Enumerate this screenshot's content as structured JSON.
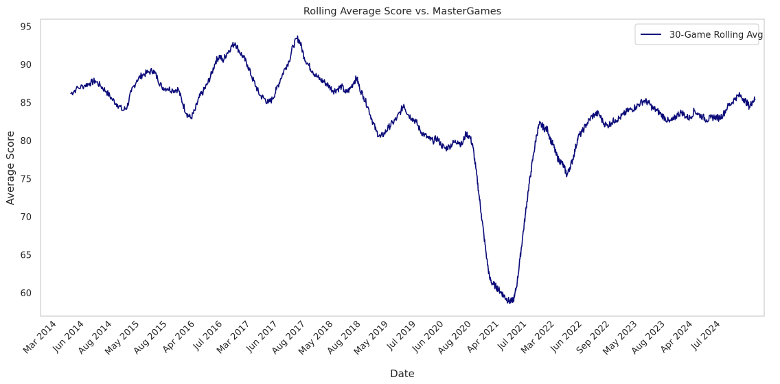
{
  "chart_data": {
    "type": "line",
    "title": "Rolling Average Score vs. MasterGames",
    "xlabel": "Date",
    "ylabel": "Average Score",
    "ylim": [
      57,
      96
    ],
    "yticks": [
      60,
      65,
      70,
      75,
      80,
      85,
      90,
      95
    ],
    "grid": false,
    "legend_position": "top-right",
    "line_color": "#0a0a78",
    "xtick_labels": [
      "Mar 2014",
      "Jun 2014",
      "Aug 2014",
      "May 2015",
      "Aug 2015",
      "Apr 2016",
      "Jul 2016",
      "Mar 2017",
      "Jun 2017",
      "Aug 2017",
      "May 2018",
      "Aug 2018",
      "May 2019",
      "Jul 2019",
      "Jun 2020",
      "Aug 2020",
      "Apr 2021",
      "Jul 2021",
      "Mar 2022",
      "Jun 2022",
      "Sep 2022",
      "May 2023",
      "Aug 2023",
      "Apr 2024",
      "Jul 2024"
    ],
    "series": [
      {
        "name": "30-Game Rolling Avg",
        "points": [
          [
            0.5,
            86.2
          ],
          [
            0.7,
            86.8
          ],
          [
            1.0,
            87.3
          ],
          [
            1.2,
            87.6
          ],
          [
            1.4,
            87.9
          ],
          [
            1.6,
            87.2
          ],
          [
            1.8,
            86.5
          ],
          [
            2.0,
            85.5
          ],
          [
            2.2,
            84.8
          ],
          [
            2.4,
            84.0
          ],
          [
            2.55,
            84.5
          ],
          [
            2.7,
            86.5
          ],
          [
            2.9,
            88.0
          ],
          [
            3.1,
            88.7
          ],
          [
            3.3,
            89.0
          ],
          [
            3.5,
            89.3
          ],
          [
            3.65,
            88.2
          ],
          [
            3.8,
            87.1
          ],
          [
            4.0,
            86.9
          ],
          [
            4.2,
            86.7
          ],
          [
            4.4,
            86.8
          ],
          [
            4.55,
            85.0
          ],
          [
            4.7,
            83.6
          ],
          [
            4.85,
            83.0
          ],
          [
            5.0,
            84.0
          ],
          [
            5.15,
            85.7
          ],
          [
            5.3,
            86.5
          ],
          [
            5.45,
            87.5
          ],
          [
            5.6,
            88.8
          ],
          [
            5.75,
            90.5
          ],
          [
            5.9,
            91.2
          ],
          [
            6.0,
            90.5
          ],
          [
            6.15,
            91.5
          ],
          [
            6.3,
            92.3
          ],
          [
            6.45,
            92.9
          ],
          [
            6.6,
            91.8
          ],
          [
            6.75,
            91.0
          ],
          [
            6.9,
            90.0
          ],
          [
            7.05,
            88.5
          ],
          [
            7.2,
            87.2
          ],
          [
            7.35,
            86.0
          ],
          [
            7.5,
            85.6
          ],
          [
            7.65,
            85.0
          ],
          [
            7.8,
            85.5
          ],
          [
            7.95,
            86.8
          ],
          [
            8.1,
            88.2
          ],
          [
            8.25,
            89.5
          ],
          [
            8.4,
            90.5
          ],
          [
            8.55,
            92.5
          ],
          [
            8.7,
            93.5
          ],
          [
            8.8,
            93.0
          ],
          [
            8.95,
            91.0
          ],
          [
            9.1,
            90.0
          ],
          [
            9.25,
            89.2
          ],
          [
            9.4,
            88.5
          ],
          [
            9.55,
            88.0
          ],
          [
            9.7,
            87.7
          ],
          [
            9.85,
            87.2
          ],
          [
            10.0,
            86.6
          ],
          [
            10.15,
            86.8
          ],
          [
            10.3,
            87.2
          ],
          [
            10.45,
            86.3
          ],
          [
            10.6,
            86.8
          ],
          [
            10.75,
            87.8
          ],
          [
            10.85,
            88.3
          ],
          [
            10.95,
            87.0
          ],
          [
            11.1,
            85.8
          ],
          [
            11.25,
            84.5
          ],
          [
            11.4,
            82.8
          ],
          [
            11.55,
            81.3
          ],
          [
            11.7,
            80.5
          ],
          [
            11.85,
            81.0
          ],
          [
            12.0,
            81.8
          ],
          [
            12.15,
            82.4
          ],
          [
            12.3,
            83.0
          ],
          [
            12.45,
            84.0
          ],
          [
            12.55,
            84.8
          ],
          [
            12.7,
            83.5
          ],
          [
            12.85,
            83.0
          ],
          [
            13.0,
            82.5
          ],
          [
            13.15,
            81.3
          ],
          [
            13.3,
            80.8
          ],
          [
            13.45,
            80.3
          ],
          [
            13.6,
            80.0
          ],
          [
            13.75,
            80.4
          ],
          [
            13.9,
            79.5
          ],
          [
            14.05,
            79.0
          ],
          [
            14.2,
            79.3
          ],
          [
            14.35,
            79.8
          ],
          [
            14.5,
            80.0
          ],
          [
            14.65,
            79.5
          ],
          [
            14.8,
            81.0
          ],
          [
            14.95,
            80.5
          ],
          [
            15.05,
            79.2
          ],
          [
            15.15,
            76.5
          ],
          [
            15.25,
            73.5
          ],
          [
            15.35,
            70.5
          ],
          [
            15.45,
            67.5
          ],
          [
            15.55,
            64.5
          ],
          [
            15.65,
            62.0
          ],
          [
            15.75,
            61.3
          ],
          [
            15.85,
            61.0
          ],
          [
            15.95,
            60.6
          ],
          [
            16.05,
            60.2
          ],
          [
            16.15,
            59.8
          ],
          [
            16.25,
            59.3
          ],
          [
            16.35,
            59.0
          ],
          [
            16.45,
            58.9
          ],
          [
            16.55,
            59.5
          ],
          [
            16.65,
            61.5
          ],
          [
            16.75,
            64.5
          ],
          [
            16.85,
            67.5
          ],
          [
            16.95,
            70.5
          ],
          [
            17.05,
            73.5
          ],
          [
            17.15,
            76.0
          ],
          [
            17.25,
            78.5
          ],
          [
            17.35,
            80.8
          ],
          [
            17.45,
            82.2
          ],
          [
            17.55,
            82.0
          ],
          [
            17.65,
            81.6
          ],
          [
            17.75,
            81.5
          ],
          [
            17.85,
            80.2
          ],
          [
            17.95,
            79.5
          ],
          [
            18.05,
            78.3
          ],
          [
            18.15,
            77.5
          ],
          [
            18.25,
            77.2
          ],
          [
            18.35,
            76.5
          ],
          [
            18.45,
            75.5
          ],
          [
            18.55,
            76.5
          ],
          [
            18.65,
            77.5
          ],
          [
            18.75,
            79.0
          ],
          [
            18.85,
            80.5
          ],
          [
            19.0,
            81.2
          ],
          [
            19.15,
            82.2
          ],
          [
            19.3,
            83.0
          ],
          [
            19.45,
            83.5
          ],
          [
            19.6,
            83.6
          ],
          [
            19.75,
            82.5
          ],
          [
            19.9,
            82.0
          ],
          [
            20.05,
            82.4
          ],
          [
            20.2,
            82.8
          ],
          [
            20.35,
            83.0
          ],
          [
            20.5,
            83.5
          ],
          [
            20.65,
            84.0
          ],
          [
            20.8,
            84.2
          ],
          [
            20.95,
            84.5
          ],
          [
            21.1,
            85.0
          ],
          [
            21.25,
            85.3
          ],
          [
            21.4,
            85.0
          ],
          [
            21.55,
            84.3
          ],
          [
            21.7,
            84.0
          ],
          [
            21.85,
            83.5
          ],
          [
            22.0,
            83.0
          ],
          [
            22.15,
            82.5
          ],
          [
            22.3,
            82.8
          ],
          [
            22.45,
            83.5
          ],
          [
            22.6,
            83.8
          ],
          [
            22.75,
            83.2
          ],
          [
            22.9,
            83.0
          ],
          [
            23.05,
            84.0
          ],
          [
            23.2,
            83.5
          ],
          [
            23.35,
            83.2
          ],
          [
            23.5,
            82.8
          ],
          [
            23.65,
            83.0
          ],
          [
            23.8,
            83.2
          ],
          [
            23.95,
            83.0
          ],
          [
            24.1,
            83.5
          ],
          [
            24.25,
            84.5
          ],
          [
            24.4,
            85.0
          ],
          [
            24.55,
            85.7
          ],
          [
            24.7,
            86.0
          ],
          [
            24.85,
            85.5
          ],
          [
            24.95,
            85.0
          ],
          [
            25.05,
            84.5
          ],
          [
            25.15,
            85.2
          ],
          [
            25.25,
            85.5
          ]
        ]
      }
    ]
  }
}
